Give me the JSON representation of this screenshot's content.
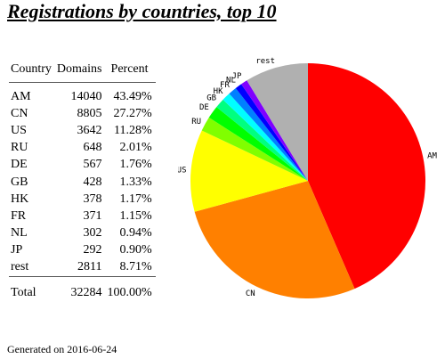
{
  "page_title": "Registrations by countries, top 10",
  "table": {
    "headers": {
      "country": "Country",
      "domains": "Domains",
      "percent": "Percent"
    },
    "rows": [
      {
        "country": "AM",
        "domains": "14040",
        "percent": "43.49%"
      },
      {
        "country": "CN",
        "domains": "8805",
        "percent": "27.27%"
      },
      {
        "country": "US",
        "domains": "3642",
        "percent": "11.28%"
      },
      {
        "country": "RU",
        "domains": "648",
        "percent": "2.01%"
      },
      {
        "country": "DE",
        "domains": "567",
        "percent": "1.76%"
      },
      {
        "country": "GB",
        "domains": "428",
        "percent": "1.33%"
      },
      {
        "country": "HK",
        "domains": "378",
        "percent": "1.17%"
      },
      {
        "country": "FR",
        "domains": "371",
        "percent": "1.15%"
      },
      {
        "country": "NL",
        "domains": "302",
        "percent": "0.94%"
      },
      {
        "country": "JP",
        "domains": "292",
        "percent": "0.90%"
      },
      {
        "country": "rest",
        "domains": "2811",
        "percent": "8.71%"
      }
    ],
    "total": {
      "label": "Total",
      "domains": "32284",
      "percent": "100.00%"
    }
  },
  "generated": "Generated on 2016-06-24",
  "chart_data": {
    "type": "pie",
    "title": "Registrations by countries, top 10",
    "slices": [
      {
        "label": "AM",
        "value": 14040,
        "percent": 43.49,
        "color": "#ff0000"
      },
      {
        "label": "CN",
        "value": 8805,
        "percent": 27.27,
        "color": "#ff8000"
      },
      {
        "label": "US",
        "value": 3642,
        "percent": 11.28,
        "color": "#ffff00"
      },
      {
        "label": "RU",
        "value": 648,
        "percent": 2.01,
        "color": "#80ff00"
      },
      {
        "label": "DE",
        "value": 567,
        "percent": 1.76,
        "color": "#00ff00"
      },
      {
        "label": "GB",
        "value": 428,
        "percent": 1.33,
        "color": "#00ff80"
      },
      {
        "label": "HK",
        "value": 378,
        "percent": 1.17,
        "color": "#00ffff"
      },
      {
        "label": "FR",
        "value": 371,
        "percent": 1.15,
        "color": "#0080ff"
      },
      {
        "label": "NL",
        "value": 302,
        "percent": 0.94,
        "color": "#0000ff"
      },
      {
        "label": "JP",
        "value": 292,
        "percent": 0.9,
        "color": "#8000ff"
      },
      {
        "label": "rest",
        "value": 2811,
        "percent": 8.71,
        "color": "#b0b0b0"
      }
    ]
  }
}
